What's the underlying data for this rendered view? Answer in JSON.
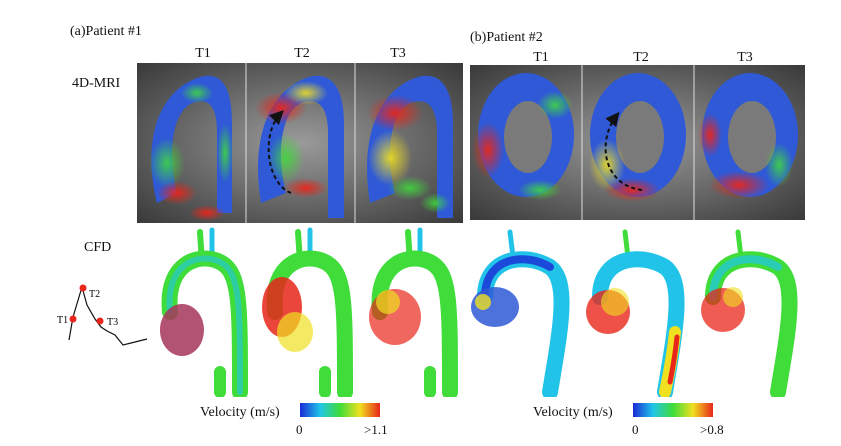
{
  "patient1": {
    "title": "(a)Patient #1",
    "times": [
      "T1",
      "T2",
      "T3"
    ],
    "colorbar": {
      "label": "Velocity (m/s)",
      "min": "0",
      "max": ">1.1"
    }
  },
  "patient2": {
    "title": "(b)Patient #2",
    "times": [
      "T1",
      "T2",
      "T3"
    ],
    "colorbar": {
      "label": "Velocity (m/s)",
      "min": "0",
      "max": ">0.8"
    }
  },
  "rows": {
    "mri": "4D-MRI",
    "cfd": "CFD"
  },
  "waveform": {
    "points": [
      "T1",
      "T2",
      "T3"
    ]
  },
  "colors": {
    "low": "#1a2bd6",
    "mid_low": "#21c4e8",
    "mid": "#3fdc3a",
    "mid_high": "#f0e020",
    "high": "#e8261a",
    "background": "#ffffff"
  }
}
